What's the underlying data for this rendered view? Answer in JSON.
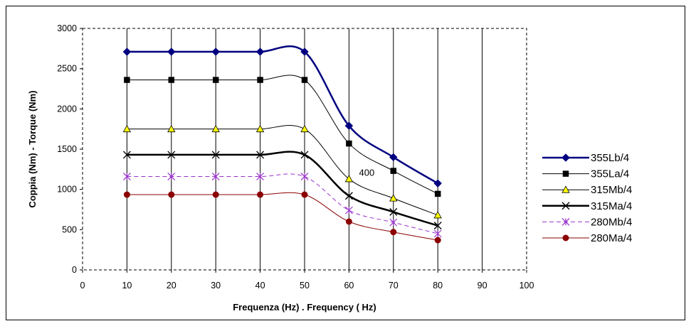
{
  "chart_data": {
    "type": "line",
    "title": "",
    "xlabel": "Frequenza (Hz)  . Frequency ( Hz)",
    "ylabel": "Coppia (Nm)  - Torque (Nm)",
    "xlim": [
      0,
      100
    ],
    "ylim": [
      0,
      3000
    ],
    "xticks": [
      "0",
      "10",
      "20",
      "30",
      "40",
      "50",
      "60",
      "70",
      "80",
      "90",
      "100"
    ],
    "yticks": [
      "0",
      "500",
      "1000",
      "1500",
      "2000",
      "2500",
      "3000"
    ],
    "grid": "vertical",
    "legend_position": "right",
    "annotations": [
      {
        "text": "400",
        "x": 64,
        "y": 1170
      }
    ],
    "series": [
      {
        "name": "355Lb/4",
        "color": "#000080",
        "marker": "diamond",
        "line_width": 2.5,
        "dash": "",
        "x": [
          10,
          20,
          30,
          40,
          50,
          60,
          70,
          80
        ],
        "y": [
          2710,
          2710,
          2710,
          2710,
          2710,
          1790,
          1400,
          1075
        ]
      },
      {
        "name": "355La/4",
        "color": "#000000",
        "marker": "square",
        "line_width": 1,
        "dash": "",
        "x": [
          10,
          20,
          30,
          40,
          50,
          60,
          70,
          80
        ],
        "y": [
          2360,
          2360,
          2360,
          2360,
          2360,
          1570,
          1230,
          945
        ]
      },
      {
        "name": "315Mb/4",
        "color": "#FFFF00",
        "marker": "triangle",
        "line_width": 1,
        "dash": "",
        "x": [
          10,
          20,
          30,
          40,
          50,
          60,
          70,
          80
        ],
        "y": [
          1750,
          1750,
          1750,
          1750,
          1750,
          1130,
          890,
          680
        ]
      },
      {
        "name": "315Ma/4",
        "color": "#000000",
        "marker": "x",
        "line_width": 2.5,
        "dash": "",
        "x": [
          10,
          20,
          30,
          40,
          50,
          60,
          70,
          80
        ],
        "y": [
          1430,
          1430,
          1430,
          1430,
          1430,
          920,
          720,
          550
        ]
      },
      {
        "name": "280Mb/4",
        "color": "#9933CC",
        "marker": "star",
        "line_width": 1,
        "dash": "6,4",
        "x": [
          10,
          20,
          30,
          40,
          50,
          60,
          70,
          80
        ],
        "y": [
          1160,
          1160,
          1160,
          1160,
          1160,
          740,
          590,
          450
        ]
      },
      {
        "name": "280Ma/4",
        "color": "#8B0000",
        "marker": "circle",
        "line_width": 1,
        "dash": "",
        "x": [
          10,
          20,
          30,
          40,
          50,
          60,
          70,
          80
        ],
        "y": [
          935,
          935,
          935,
          935,
          935,
          600,
          470,
          370
        ]
      }
    ]
  }
}
